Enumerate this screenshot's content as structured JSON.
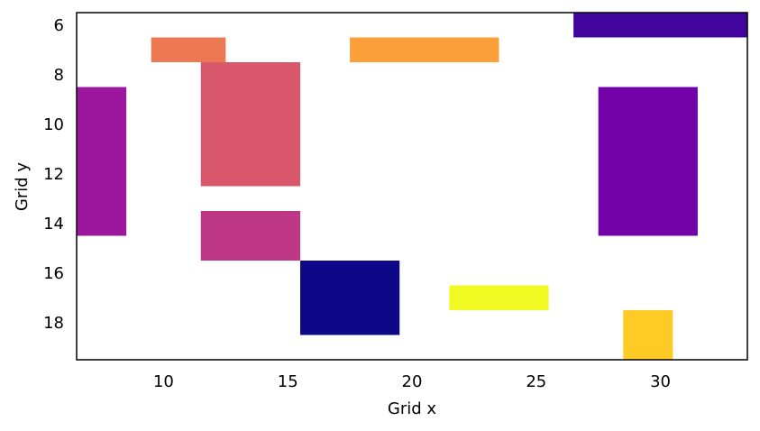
{
  "chart_data": {
    "type": "heatmap",
    "title": "",
    "xlabel": "Grid x",
    "ylabel": "Grid y",
    "xlim": [
      6.5,
      33.5
    ],
    "ylim": [
      19.5,
      5.5
    ],
    "y_inverted": true,
    "grid": false,
    "legend": "none",
    "colormap": "plasma",
    "x_ticks": [
      10,
      15,
      20,
      25,
      30
    ],
    "y_ticks": [
      6,
      8,
      10,
      12,
      14,
      16,
      18
    ],
    "cells": [
      {
        "x0": 26.5,
        "x1": 33.5,
        "y0": 5.5,
        "y1": 6.5,
        "color": "#41049d"
      },
      {
        "x0": 9.5,
        "x1": 12.5,
        "y0": 6.5,
        "y1": 7.5,
        "color": "#ed7953"
      },
      {
        "x0": 17.5,
        "x1": 23.5,
        "y0": 6.5,
        "y1": 7.5,
        "color": "#fb9f3a"
      },
      {
        "x0": 11.5,
        "x1": 15.5,
        "y0": 7.5,
        "y1": 12.5,
        "color": "#d8576b"
      },
      {
        "x0": 6.5,
        "x1": 8.5,
        "y0": 8.5,
        "y1": 14.5,
        "color": "#9c179e"
      },
      {
        "x0": 27.5,
        "x1": 31.5,
        "y0": 8.5,
        "y1": 14.5,
        "color": "#7201a8"
      },
      {
        "x0": 11.5,
        "x1": 15.5,
        "y0": 13.5,
        "y1": 15.5,
        "color": "#bd3786"
      },
      {
        "x0": 15.5,
        "x1": 19.5,
        "y0": 15.5,
        "y1": 18.5,
        "color": "#0d0887"
      },
      {
        "x0": 21.5,
        "x1": 25.5,
        "y0": 16.5,
        "y1": 17.5,
        "color": "#f0f921"
      },
      {
        "x0": 28.5,
        "x1": 30.5,
        "y0": 17.5,
        "y1": 19.5,
        "color": "#fdca26"
      }
    ]
  }
}
